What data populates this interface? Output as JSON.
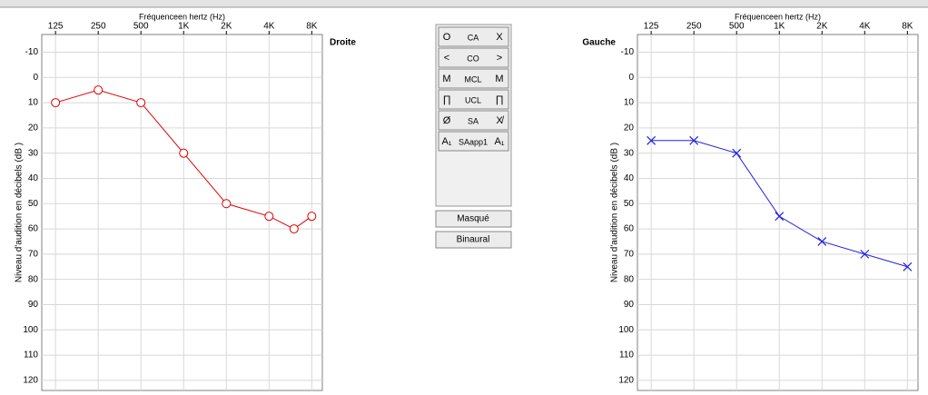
{
  "chart_data": [
    {
      "type": "line",
      "side_label": "Droite",
      "xlabel": "Fréquenceen hertz (Hz)",
      "ylabel": "Niveau d'audition en décibels (dB )",
      "x": [
        125,
        250,
        500,
        1000,
        2000,
        4000,
        6000,
        8000
      ],
      "series": [
        {
          "color": "#e00000",
          "marker": "circle",
          "values": [
            10,
            5,
            10,
            30,
            50,
            55,
            60,
            55
          ]
        }
      ],
      "xlim": [
        100,
        9500
      ],
      "xscale": "log",
      "xticks": [
        125,
        250,
        500,
        {
          "value": 1000,
          "label": "1K"
        },
        {
          "value": 2000,
          "label": "2K"
        },
        {
          "value": 4000,
          "label": "4K"
        },
        {
          "value": 8000,
          "label": "8K"
        }
      ],
      "ylim": [
        -17,
        124
      ],
      "y_inverted": true,
      "yticks": [
        -10,
        0,
        10,
        20,
        30,
        40,
        50,
        60,
        70,
        80,
        90,
        100,
        110,
        120
      ],
      "grid": true
    },
    {
      "type": "line",
      "side_label": "Gauche",
      "xlabel": "Fréquenceen hertz (Hz)",
      "ylabel": "Niveau d'audition en décibels (dB )",
      "x": [
        125,
        250,
        500,
        1000,
        2000,
        4000,
        8000
      ],
      "series": [
        {
          "color": "#2020e0",
          "marker": "cross",
          "values": [
            25,
            25,
            30,
            55,
            65,
            70,
            75
          ]
        }
      ],
      "xlim": [
        100,
        9500
      ],
      "xscale": "log",
      "xticks": [
        125,
        250,
        500,
        {
          "value": 1000,
          "label": "1K"
        },
        {
          "value": 2000,
          "label": "2K"
        },
        {
          "value": 4000,
          "label": "4K"
        },
        {
          "value": 8000,
          "label": "8K"
        }
      ],
      "ylim": [
        -17,
        124
      ],
      "y_inverted": true,
      "yticks": [
        -10,
        0,
        10,
        20,
        30,
        40,
        50,
        60,
        70,
        80,
        90,
        100,
        110,
        120
      ],
      "grid": true
    }
  ],
  "panel": {
    "rows": [
      {
        "left": "O",
        "label": "CA",
        "right": "X"
      },
      {
        "left": "<",
        "label": "CO",
        "right": ">"
      },
      {
        "left": "M",
        "label": "MCL",
        "right": "M"
      },
      {
        "left": "∏",
        "label": "UCL",
        "right": "∏"
      },
      {
        "left": "Ø",
        "label": "SA",
        "right": "X̸"
      },
      {
        "left": "A₁",
        "label": "SAapp1",
        "right": "A₁"
      }
    ],
    "buttons": [
      "Masqué",
      "Binaural"
    ]
  }
}
